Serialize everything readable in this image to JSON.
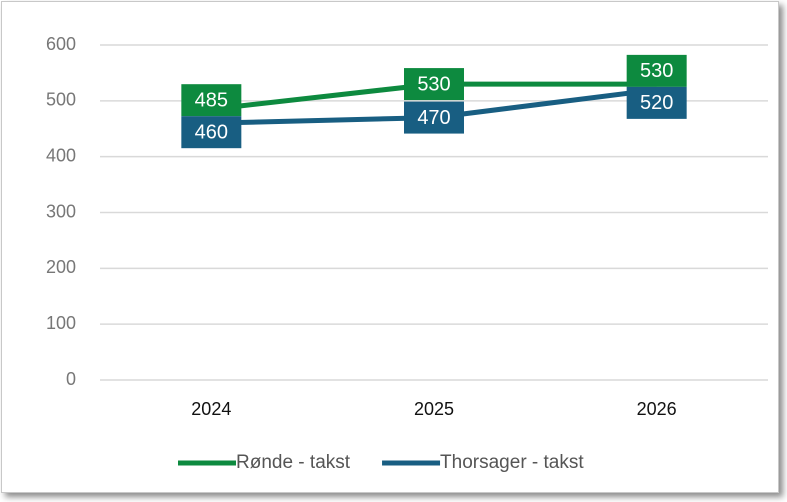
{
  "chart_data": {
    "type": "line",
    "categories": [
      "2024",
      "2025",
      "2026"
    ],
    "series": [
      {
        "name": "Rønde - takst",
        "color": "#0d8a3f",
        "values": [
          485,
          530,
          530
        ]
      },
      {
        "name": "Thorsager - takst",
        "color": "#185e82",
        "values": [
          460,
          470,
          520
        ]
      }
    ],
    "ylim": [
      0,
      600
    ],
    "yticks": [
      0,
      100,
      200,
      300,
      400,
      500,
      600
    ],
    "grid": true,
    "legend": "bottom"
  }
}
